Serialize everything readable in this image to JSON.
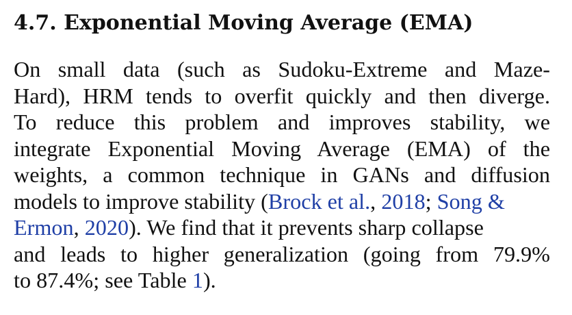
{
  "section": {
    "heading": "4.7. Exponential Moving Average (EMA)",
    "paragraph": {
      "line1": "On small data (such as Sudoku-Extreme and Maze-",
      "line2": "Hard), HRM tends to overfit quickly and then diverge.",
      "line3": "To reduce this problem and improves stability, we",
      "line4": "integrate Exponential Moving Average (EMA) of the",
      "line5": "weights, a common technique in GANs and diffusion",
      "line6_text": "models to improve stability (",
      "cite_brock_authors": "Brock et al.",
      "cite_sep1": ", ",
      "cite_brock_year": "2018",
      "cite_sep2": "; ",
      "cite_song_authors_a": "Song &",
      "cite_song_authors_b": "Ermon",
      "cite_sep3": ", ",
      "cite_song_year": "2020",
      "line7_rest": "). We find that it prevents sharp collapse",
      "line8": "and leads to higher generalization (going from 79.9%",
      "line9_text": "to 87.4%; see Table ",
      "table_ref": "1",
      "line9_end": ")."
    }
  },
  "colors": {
    "text": "#111111",
    "link": "#1f3fa6",
    "background": "#ffffff"
  }
}
